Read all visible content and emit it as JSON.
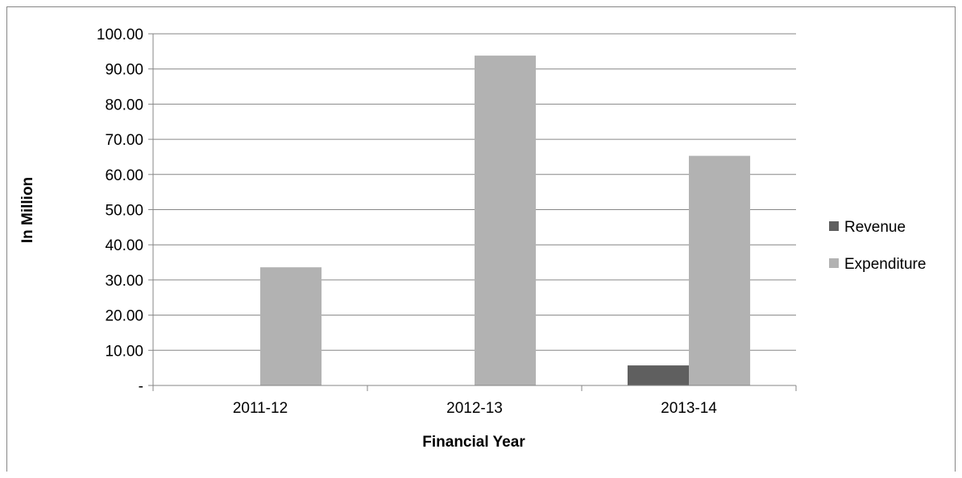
{
  "chart_data": {
    "type": "bar",
    "title": "",
    "xlabel": "Financial Year",
    "ylabel": "In Million",
    "categories": [
      "2011-12",
      "2012-13",
      "2013-14"
    ],
    "series": [
      {
        "name": "Revenue",
        "values": [
          0,
          0,
          5.7
        ],
        "color": "#5f5f5f"
      },
      {
        "name": "Expenditure",
        "values": [
          33.6,
          93.8,
          65.3
        ],
        "color": "#b2b2b2"
      }
    ],
    "ylim": [
      0,
      100
    ],
    "yticks": [
      0,
      10,
      20,
      30,
      40,
      50,
      60,
      70,
      80,
      90,
      100
    ],
    "ytick_labels": [
      "-",
      "10.00",
      "20.00",
      "30.00",
      "40.00",
      "50.00",
      "60.00",
      "70.00",
      "80.00",
      "90.00",
      "100.00"
    ],
    "grid": true,
    "legend_position": "right"
  }
}
